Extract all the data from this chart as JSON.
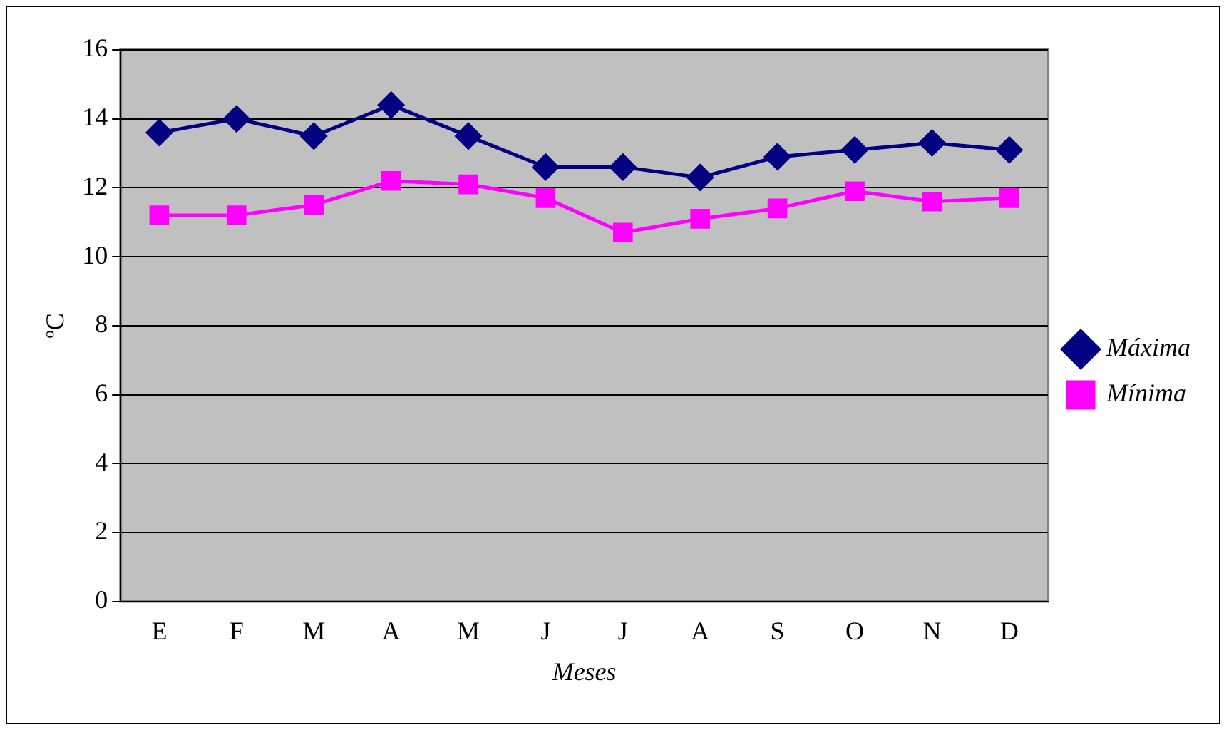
{
  "chart_data": {
    "type": "line",
    "xlabel": "Meses",
    "ylabel": "ºC",
    "categories": [
      "E",
      "F",
      "M",
      "A",
      "M",
      "J",
      "J",
      "A",
      "S",
      "O",
      "N",
      "D"
    ],
    "series": [
      {
        "name": "Máxima",
        "color": "#000080",
        "marker": "diamond",
        "values": [
          13.6,
          14.0,
          13.5,
          14.4,
          13.5,
          12.6,
          12.6,
          12.3,
          12.9,
          13.1,
          13.3,
          13.1
        ]
      },
      {
        "name": "Mínima",
        "color": "#ff00ff",
        "marker": "square",
        "values": [
          11.2,
          11.2,
          11.5,
          12.2,
          12.1,
          11.7,
          10.7,
          11.1,
          11.4,
          11.9,
          11.6,
          11.7
        ]
      }
    ],
    "ylim": [
      0,
      16
    ],
    "yticks": [
      0,
      2,
      4,
      6,
      8,
      10,
      12,
      14,
      16
    ],
    "grid": "y",
    "legend": "right"
  }
}
